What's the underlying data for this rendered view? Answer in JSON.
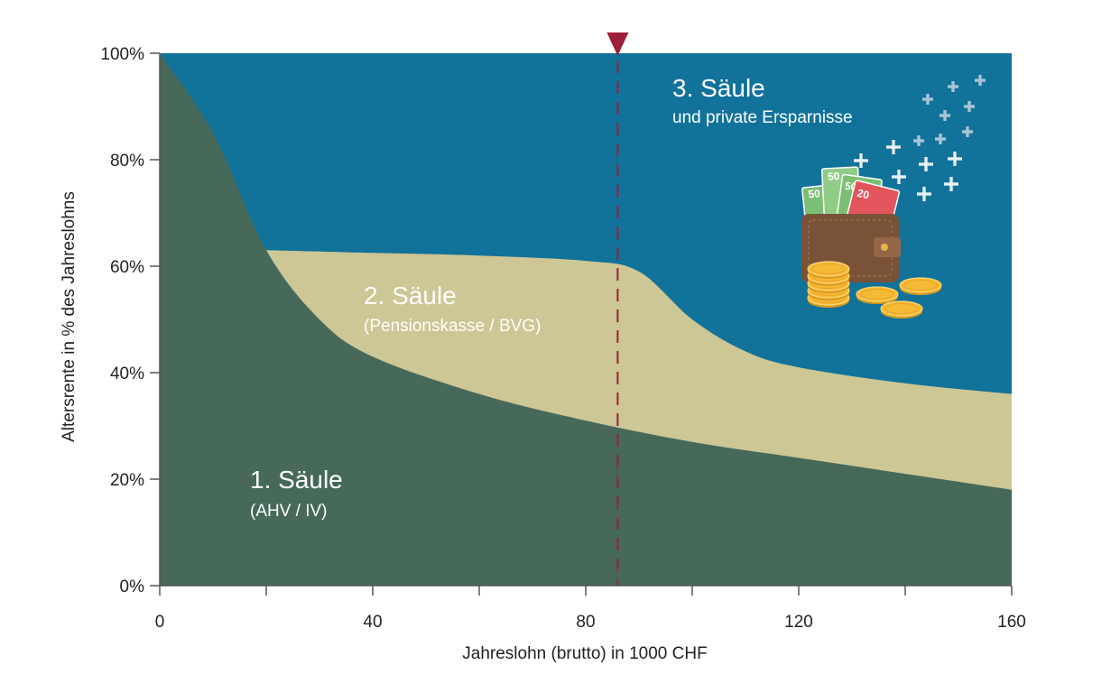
{
  "chart_data": {
    "type": "area",
    "xlabel": "Jahreslohn (brutto) in 1000 CHF",
    "ylabel": "Altersrente in % des Jahreslohns",
    "xlim": [
      0,
      160
    ],
    "ylim": [
      0,
      100
    ],
    "x_ticks": [
      0,
      20,
      40,
      60,
      80,
      100,
      120,
      140,
      160
    ],
    "x_tick_labels": [
      "0",
      "40",
      "80",
      "120",
      "160"
    ],
    "x_tick_label_values": [
      0,
      40,
      80,
      120,
      160
    ],
    "y_ticks": [
      0,
      20,
      40,
      60,
      80,
      100
    ],
    "y_tick_labels": [
      "0%",
      "20%",
      "40%",
      "60%",
      "80%",
      "100%"
    ],
    "series": [
      {
        "name": "1. Säule",
        "subtitle": "(AHV / IV)",
        "color": "#46695a",
        "points": [
          [
            0,
            100
          ],
          [
            10,
            85
          ],
          [
            20,
            63
          ],
          [
            30,
            50
          ],
          [
            40,
            43
          ],
          [
            60,
            36
          ],
          [
            80,
            31
          ],
          [
            100,
            27
          ],
          [
            120,
            24
          ],
          [
            140,
            21
          ],
          [
            160,
            18
          ]
        ]
      },
      {
        "name": "2. Säule",
        "subtitle": "(Pensionskasse / BVG)",
        "color": "#cdc695",
        "points": [
          [
            20,
            63
          ],
          [
            40,
            62.5
          ],
          [
            60,
            62
          ],
          [
            80,
            61
          ],
          [
            90,
            59
          ],
          [
            100,
            50
          ],
          [
            110,
            44
          ],
          [
            120,
            41
          ],
          [
            140,
            38
          ],
          [
            160,
            36
          ]
        ]
      },
      {
        "name": "3. Säule",
        "subtitle": "und private Ersparnisse",
        "color": "#11729a",
        "points": [
          [
            0,
            100
          ],
          [
            160,
            100
          ]
        ]
      }
    ],
    "marker": {
      "x": 86,
      "color": "#9e1f3a",
      "style": "dashed"
    },
    "illustration": "wallet-with-banknotes-and-coins",
    "illustration_texts": [
      "50",
      "50",
      "50",
      "20"
    ]
  }
}
